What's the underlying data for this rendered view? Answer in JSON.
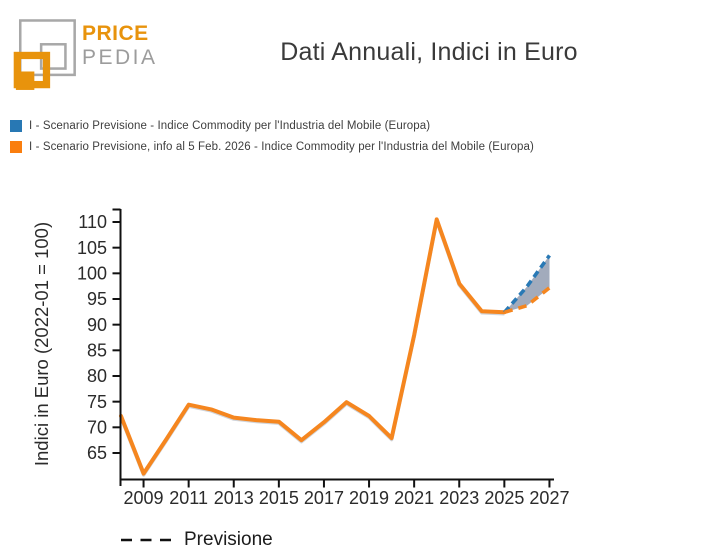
{
  "header": {
    "logo_line1": "PRICE",
    "logo_line2": "PEDIA",
    "title": "Dati Annuali, Indici in Euro"
  },
  "legend": {
    "items": [
      {
        "label": "I - Scenario Previsione - Indice Commodity per l'Industria del Mobile (Europa)",
        "color": "#2878B4"
      },
      {
        "label": "I - Scenario Previsione, info al 5 Feb. 2026 - Indice Commodity per l'Industria del Mobile (Europa)",
        "color": "#FA7E0E"
      }
    ]
  },
  "chart_data": {
    "type": "line",
    "title": "Dati Annuali, Indici in Euro",
    "ylabel": "Indici in Euro (2022-01 = 100)",
    "xlim": [
      2008,
      2027.2
    ],
    "ylim": [
      59.5,
      112.5
    ],
    "x_ticks": [
      2009,
      2011,
      2013,
      2015,
      2017,
      2019,
      2021,
      2023,
      2025,
      2027
    ],
    "y_ticks": [
      65,
      70,
      75,
      80,
      85,
      90,
      95,
      100,
      105,
      110
    ],
    "grid": false,
    "legend_position": "top-left",
    "series": [
      {
        "name": "I - Scenario Previsione, info al 5 Feb. 2026 - Indice Commodity per l'Industria del Mobile (Europa)",
        "color": "#F5861F",
        "history_x": [
          2008,
          2009,
          2010,
          2011,
          2012,
          2013,
          2014,
          2015,
          2016,
          2017,
          2018,
          2019,
          2020,
          2021,
          2022,
          2023,
          2024,
          2025
        ],
        "history_values": [
          72.2,
          61.0,
          67.6,
          74.4,
          73.5,
          71.9,
          71.4,
          71.1,
          67.5,
          71.0,
          74.9,
          72.2,
          67.9,
          88.0,
          110.5,
          98.0,
          92.6,
          92.4
        ],
        "forecast_x": [
          2025,
          2026,
          2027
        ],
        "forecast_values": [
          92.4,
          93.7,
          97.2
        ],
        "forecast_style": "dashed"
      },
      {
        "name": "I - Scenario Previsione - Indice Commodity per l'Industria del Mobile (Europa)",
        "color": "#2979B5",
        "forecast_x": [
          2025,
          2026,
          2027
        ],
        "forecast_values": [
          92.4,
          97.4,
          103.5
        ],
        "forecast_style": "dashed"
      }
    ],
    "fill_between_forecasts_color": "#A2ABBC",
    "axis_color": "#111111",
    "tick_label_color": "#2B2B2B",
    "forecast_legend": {
      "label": "Previsione"
    }
  }
}
